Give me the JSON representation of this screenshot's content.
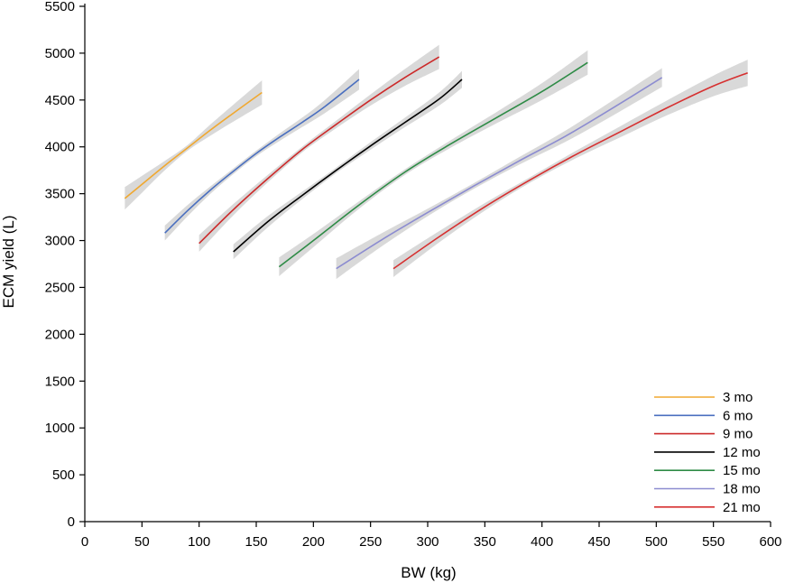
{
  "chart_data": {
    "type": "line",
    "title": "",
    "xlabel": "BW (kg)",
    "ylabel": "ECM yield (L)",
    "xlim": [
      0,
      600
    ],
    "ylim": [
      0,
      5500
    ],
    "xticks": [
      0,
      50,
      100,
      150,
      200,
      250,
      300,
      350,
      400,
      450,
      500,
      550,
      600
    ],
    "yticks": [
      0,
      500,
      1000,
      1500,
      2000,
      2500,
      3000,
      3500,
      4000,
      4500,
      5000,
      5500
    ],
    "grid": false,
    "legend_position": "bottom-right",
    "confidence_band": true,
    "band_color": "#d9d9d9",
    "series": [
      {
        "name": "3 mo",
        "color": "#f0a830",
        "x": [
          35,
          50,
          70,
          90,
          110,
          130,
          155
        ],
        "y": [
          3450,
          3600,
          3800,
          3990,
          4180,
          4360,
          4580
        ],
        "band_half_width": [
          120,
          90,
          50,
          30,
          60,
          90,
          130
        ]
      },
      {
        "name": "6 mo",
        "color": "#4a6fbf",
        "x": [
          70,
          90,
          110,
          130,
          150,
          170,
          190,
          210,
          240
        ],
        "y": [
          3080,
          3320,
          3540,
          3740,
          3930,
          4100,
          4260,
          4430,
          4720
        ],
        "band_half_width": [
          80,
          60,
          40,
          30,
          30,
          40,
          50,
          70,
          110
        ]
      },
      {
        "name": "9 mo",
        "color": "#cc2a2a",
        "x": [
          100,
          130,
          160,
          190,
          220,
          250,
          280,
          310
        ],
        "y": [
          2970,
          3330,
          3660,
          3970,
          4240,
          4500,
          4740,
          4960
        ],
        "band_half_width": [
          90,
          60,
          40,
          30,
          40,
          60,
          90,
          130
        ]
      },
      {
        "name": "12 mo",
        "color": "#000000",
        "x": [
          130,
          160,
          190,
          220,
          250,
          280,
          310,
          330
        ],
        "y": [
          2880,
          3200,
          3480,
          3750,
          4010,
          4260,
          4510,
          4720
        ],
        "band_half_width": [
          80,
          60,
          40,
          30,
          40,
          50,
          70,
          90
        ]
      },
      {
        "name": "15 mo",
        "color": "#2e8b46",
        "x": [
          170,
          200,
          240,
          280,
          320,
          360,
          400,
          440
        ],
        "y": [
          2720,
          3000,
          3380,
          3730,
          4030,
          4310,
          4590,
          4900
        ],
        "band_half_width": [
          100,
          70,
          40,
          30,
          40,
          60,
          90,
          130
        ]
      },
      {
        "name": "18 mo",
        "color": "#8c8cd0",
        "x": [
          220,
          260,
          300,
          340,
          380,
          420,
          460,
          505
        ],
        "y": [
          2700,
          3010,
          3300,
          3580,
          3850,
          4110,
          4400,
          4740
        ],
        "band_half_width": [
          110,
          70,
          40,
          30,
          40,
          60,
          80,
          100
        ]
      },
      {
        "name": "21 mo",
        "color": "#d63030",
        "x": [
          270,
          310,
          350,
          390,
          430,
          470,
          510,
          550,
          580
        ],
        "y": [
          2700,
          3040,
          3360,
          3650,
          3920,
          4170,
          4420,
          4650,
          4790
        ],
        "band_half_width": [
          90,
          60,
          40,
          30,
          40,
          60,
          80,
          110,
          140
        ]
      }
    ]
  }
}
